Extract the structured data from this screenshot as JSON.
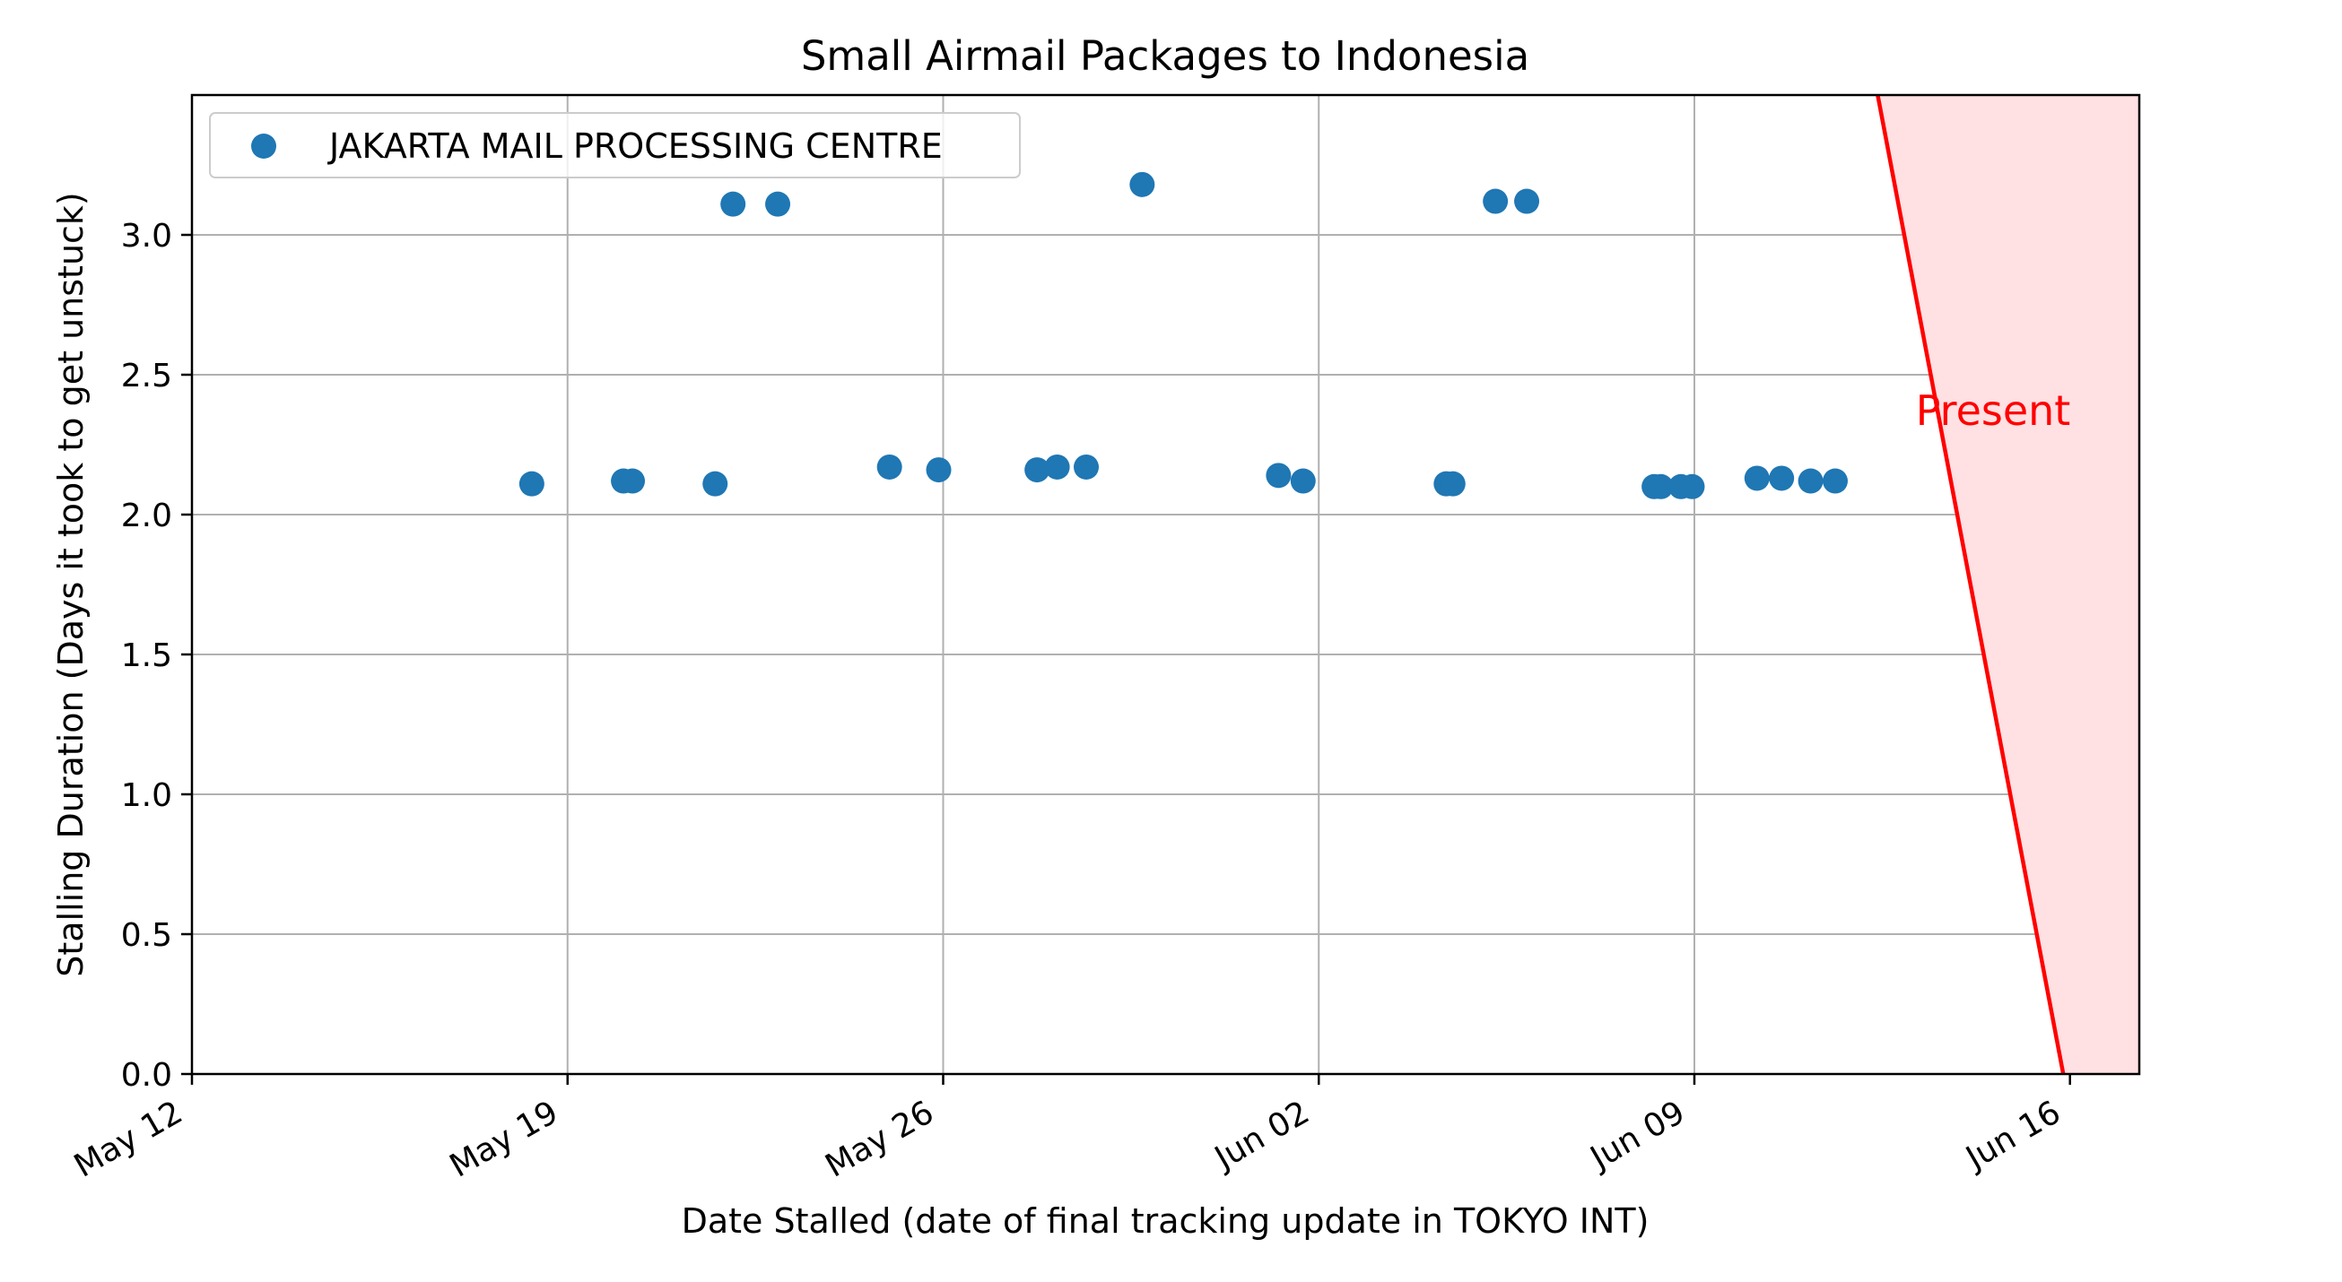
{
  "chart_data": {
    "type": "scatter",
    "title": "Small Airmail Packages to Indonesia",
    "xlabel": "Date Stalled (date of final tracking update in TOKYO INT)",
    "ylabel": "Stalling Duration (Days it took to get unstuck)",
    "x_axis": "date",
    "xlim": [
      "2023-05-12",
      "2023-06-17 07:00"
    ],
    "ylim": [
      0,
      3.5
    ],
    "x_ticks": [
      {
        "date": "2023-05-12",
        "label": "May 12"
      },
      {
        "date": "2023-05-19",
        "label": "May 19"
      },
      {
        "date": "2023-05-26",
        "label": "May 26"
      },
      {
        "date": "2023-06-02",
        "label": "Jun 02"
      },
      {
        "date": "2023-06-09",
        "label": "Jun 09"
      },
      {
        "date": "2023-06-16",
        "label": "Jun 16"
      }
    ],
    "y_ticks": [
      0.0,
      0.5,
      1.0,
      1.5,
      2.0,
      2.5,
      3.0
    ],
    "y_tick_labels": [
      "0.0",
      "0.5",
      "1.0",
      "1.5",
      "2.0",
      "2.5",
      "3.0"
    ],
    "grid": true,
    "legend": {
      "placement": "top-left",
      "entries": [
        "JAKARTA MAIL PROCESSING CENTRE"
      ]
    },
    "series": [
      {
        "name": "JAKARTA MAIL PROCESSING CENTRE",
        "color": "#1f77b4",
        "points": [
          {
            "x": "2023-05-18 08:00",
            "y": 2.11
          },
          {
            "x": "2023-05-20 01:00",
            "y": 2.12
          },
          {
            "x": "2023-05-20 05:00",
            "y": 2.12
          },
          {
            "x": "2023-05-21 18:00",
            "y": 2.11
          },
          {
            "x": "2023-05-22 02:00",
            "y": 3.11
          },
          {
            "x": "2023-05-22 22:00",
            "y": 3.11
          },
          {
            "x": "2023-05-25 00:00",
            "y": 2.17
          },
          {
            "x": "2023-05-25 22:00",
            "y": 2.16
          },
          {
            "x": "2023-05-27 18:00",
            "y": 2.16
          },
          {
            "x": "2023-05-28 03:00",
            "y": 2.17
          },
          {
            "x": "2023-05-28 16:00",
            "y": 2.17
          },
          {
            "x": "2023-05-29 17:00",
            "y": 3.18
          },
          {
            "x": "2023-06-01 06:00",
            "y": 2.14
          },
          {
            "x": "2023-06-01 17:00",
            "y": 2.12
          },
          {
            "x": "2023-06-04 09:00",
            "y": 2.11
          },
          {
            "x": "2023-06-04 12:00",
            "y": 2.11
          },
          {
            "x": "2023-06-05 07:00",
            "y": 3.12
          },
          {
            "x": "2023-06-05 21:00",
            "y": 3.12
          },
          {
            "x": "2023-06-08 06:00",
            "y": 2.1
          },
          {
            "x": "2023-06-08 09:00",
            "y": 2.1
          },
          {
            "x": "2023-06-08 18:00",
            "y": 2.1
          },
          {
            "x": "2023-06-08 23:00",
            "y": 2.1
          },
          {
            "x": "2023-06-10 04:00",
            "y": 2.13
          },
          {
            "x": "2023-06-10 15:00",
            "y": 2.13
          },
          {
            "x": "2023-06-11 04:00",
            "y": 2.12
          },
          {
            "x": "2023-06-11 15:00",
            "y": 2.12
          }
        ]
      }
    ],
    "present_line": {
      "label": "Present",
      "color": "#ff0000",
      "fill_color": "#ffe0e3",
      "top": {
        "x": "2023-06-12 10:00",
        "y": 3.5
      },
      "bottom": {
        "x": "2023-06-15 21:00",
        "y": 0.0
      },
      "label_anchor": {
        "x": "2023-06-13 03:00",
        "y": 2.32
      }
    }
  }
}
